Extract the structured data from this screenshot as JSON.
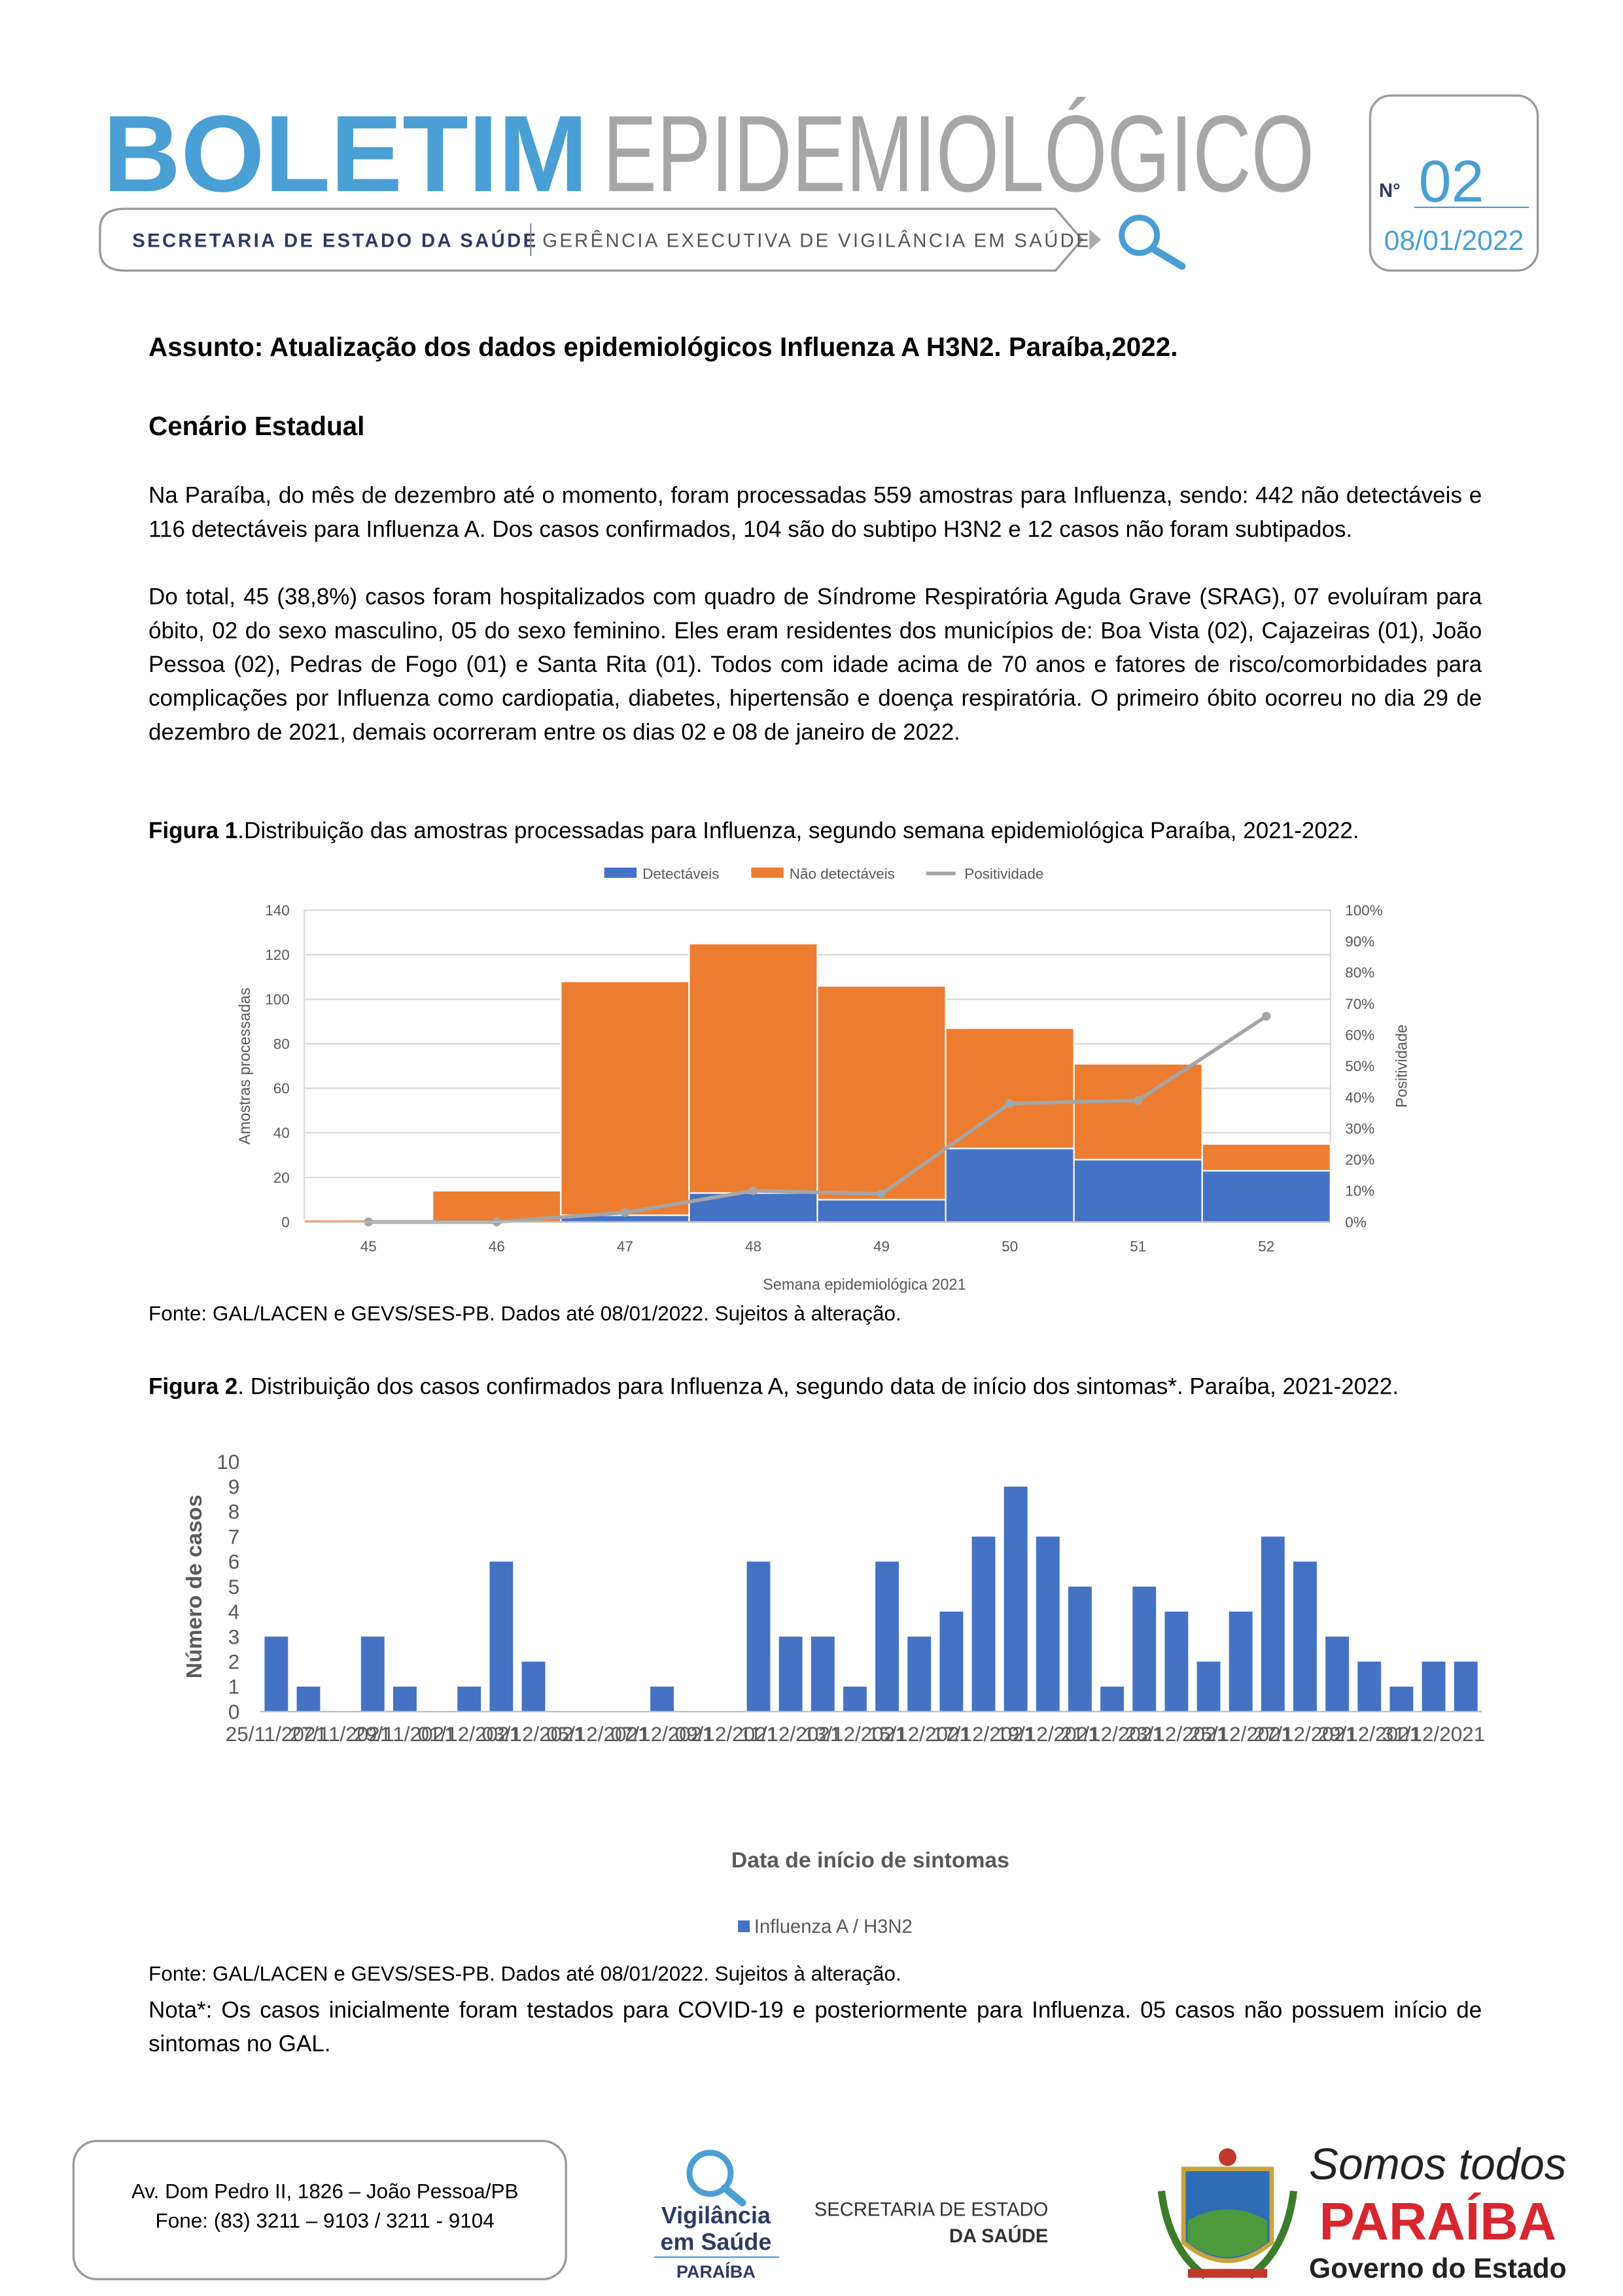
{
  "header": {
    "title_bold": "BOLETIM",
    "title_light": "EPIDEMIOLÓGICO",
    "department": "SECRETARIA DE ESTADO DA SAÚDE",
    "division": "GERÊNCIA EXECUTIVA DE VIGILÂNCIA EM SAÚDE",
    "number_label": "N°",
    "number": "02",
    "date": "08/01/2022"
  },
  "subject": "Assunto: Atualização dos dados epidemiológicos Influenza A H3N2. Paraíba,2022.",
  "section_title": "Cenário Estadual",
  "paragraphs": [
    "Na Paraíba, do mês de dezembro até o momento, foram processadas 559 amostras para Influenza, sendo: 442 não detectáveis e 116 detectáveis para Influenza A. Dos casos confirmados, 104 são do subtipo H3N2 e 12 casos não foram subtipados.",
    "Do total, 45 (38,8%) casos foram hospitalizados com quadro de Síndrome Respiratória Aguda Grave (SRAG), 07 evoluíram para óbito, 02 do sexo masculino, 05 do sexo feminino. Eles eram residentes dos municípios de: Boa Vista (02), Cajazeiras (01), João Pessoa (02), Pedras de Fogo (01) e Santa Rita (01). Todos com idade acima de 70 anos e fatores de risco/comorbidades para complicações por Influenza como cardiopatia, diabetes, hipertensão e doença respiratória. O primeiro óbito ocorreu no dia 29 de dezembro de 2021, demais ocorreram entre os dias 02 e 08 de janeiro de 2022."
  ],
  "figures": [
    {
      "label": "Figura 1",
      "caption": ".Distribuição das amostras processadas para Influenza, segundo semana epidemiológica Paraíba, 2021-2022.",
      "source": "Fonte: GAL/LACEN e GEVS/SES-PB. Dados até 08/01/2022. Sujeitos à alteração."
    },
    {
      "label": "Figura 2",
      "caption": ". Distribuição dos casos confirmados para Influenza A, segundo data de início dos sintomas*. Paraíba, 2021-2022.",
      "source": "Fonte: GAL/LACEN e GEVS/SES-PB. Dados até 08/01/2022. Sujeitos à alteração."
    }
  ],
  "chart_data": [
    {
      "type": "bar",
      "stacked": true,
      "grid": true,
      "x_label": "Semana epidemiológica 2021",
      "y_label": "Amostras processadas",
      "y2_label": "Positividade",
      "categories": [
        "45",
        "46",
        "47",
        "48",
        "49",
        "50",
        "51",
        "52"
      ],
      "series": [
        {
          "name": "Detectáveis",
          "color": "#4472c4",
          "values": [
            0,
            0,
            3,
            13,
            10,
            33,
            28,
            23
          ]
        },
        {
          "name": "Não detectáveis",
          "color": "#ed7d31",
          "values": [
            1,
            14,
            105,
            112,
            96,
            54,
            43,
            12
          ]
        },
        {
          "name": "Positividade",
          "type": "line",
          "axis": "y2",
          "color": "#a5a5a5",
          "values": [
            0,
            0,
            3,
            10,
            9,
            38,
            39,
            66
          ]
        }
      ],
      "ylim": [
        0,
        140
      ],
      "yticks": [
        0,
        20,
        40,
        60,
        80,
        100,
        120,
        140
      ],
      "y2lim": [
        0,
        100
      ],
      "y2ticks": [
        {
          "value": 0,
          "label": "0%"
        },
        {
          "value": 10,
          "label": "10%"
        },
        {
          "value": 20,
          "label": "20%"
        },
        {
          "value": 30,
          "label": "30%"
        },
        {
          "value": 40,
          "label": "40%"
        },
        {
          "value": 50,
          "label": "50%"
        },
        {
          "value": 60,
          "label": "60%"
        },
        {
          "value": 70,
          "label": "70%"
        },
        {
          "value": 80,
          "label": "80%"
        },
        {
          "value": 90,
          "label": "90%"
        },
        {
          "value": 100,
          "label": "100%"
        }
      ]
    },
    {
      "type": "bar",
      "grid": false,
      "x_label": "Data de início de sintomas",
      "y_label": "Número de casos",
      "categories": [
        "25/11/2021",
        null,
        "27/11/2021",
        null,
        "29/11/2021",
        null,
        "01/12/2021",
        null,
        "03/12/2021",
        null,
        "05/12/2021",
        null,
        "07/12/2021",
        null,
        "09/12/2021",
        null,
        "11/12/2021",
        null,
        "13/12/2021",
        null,
        "15/12/2021",
        null,
        "17/12/2021",
        null,
        "19/12/2021",
        null,
        "21/12/2021",
        null,
        "23/12/2021",
        null,
        "25/12/2021",
        null,
        "27/12/2021",
        null,
        "29/12/2021",
        null,
        "31/12/2021",
        null
      ],
      "series": [
        {
          "name": "Influenza A / H3N2",
          "color": "#4472c4",
          "values": [
            3,
            1,
            0,
            3,
            1,
            0,
            1,
            6,
            2,
            0,
            0,
            0,
            1,
            0,
            0,
            6,
            3,
            3,
            1,
            6,
            3,
            4,
            7,
            9,
            7,
            5,
            1,
            5,
            4,
            2,
            4,
            7,
            6,
            3,
            2,
            1,
            2,
            2
          ]
        }
      ],
      "ylim": [
        0,
        10
      ],
      "yticks": [
        0,
        1,
        2,
        3,
        4,
        5,
        6,
        7,
        8,
        9,
        10
      ]
    }
  ],
  "note": "Nota*: Os casos inicialmente foram testados para COVID-19 e posteriormente para Influenza. 05 casos não possuem início de sintomas no GAL.",
  "footer": {
    "address": "Av. Dom Pedro II, 1826 – João Pessoa/PB",
    "phone": "Fone: (83) 3211 – 9103 / 3211 - 9104",
    "logo_vigilancia": [
      "Vigilância",
      "em Saúde",
      "PARAÍBA"
    ],
    "logo_secretaria": [
      "SECRETARIA DE ESTADO",
      "DA SAÚDE"
    ],
    "logo_governo": [
      "Somos todos",
      "PARAÍBA",
      "Governo do Estado"
    ]
  }
}
